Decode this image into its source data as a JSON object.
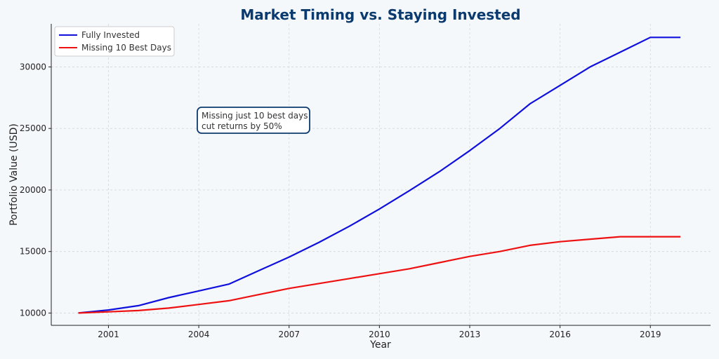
{
  "chart_data": {
    "type": "line",
    "title": "Market Timing vs. Staying Invested",
    "xlabel": "Year",
    "ylabel": "Portfolio Value (USD)",
    "xlim": [
      1999.1,
      2021.0
    ],
    "ylim": [
      9000,
      33500
    ],
    "xticks": [
      2001,
      2004,
      2007,
      2010,
      2013,
      2016,
      2019
    ],
    "yticks": [
      10000,
      15000,
      20000,
      25000,
      30000
    ],
    "grid": true,
    "legend_position": "top-left",
    "x": [
      2000,
      2001,
      2002,
      2003,
      2004,
      2005,
      2006,
      2007,
      2008,
      2009,
      2010,
      2011,
      2012,
      2013,
      2014,
      2015,
      2016,
      2017,
      2018,
      2019,
      2020
    ],
    "series": [
      {
        "name": "Fully Invested",
        "color": "#1010dd",
        "values": [
          10000,
          10250,
          10600,
          11250,
          11800,
          12350,
          13450,
          14550,
          15750,
          17050,
          18450,
          19950,
          21500,
          23200,
          25000,
          27000,
          28500,
          30000,
          31200,
          32400,
          32400
        ]
      },
      {
        "name": "Missing 10 Best Days",
        "color": "#ee1111",
        "values": [
          10000,
          10100,
          10200,
          10400,
          10700,
          11000,
          11500,
          12000,
          12400,
          12800,
          13200,
          13600,
          14100,
          14600,
          15000,
          15500,
          15800,
          16000,
          16200,
          16200,
          16200
        ]
      }
    ],
    "annotation": {
      "lines": [
        "Missing just 10 best days",
        "cut returns by 50%"
      ]
    }
  }
}
